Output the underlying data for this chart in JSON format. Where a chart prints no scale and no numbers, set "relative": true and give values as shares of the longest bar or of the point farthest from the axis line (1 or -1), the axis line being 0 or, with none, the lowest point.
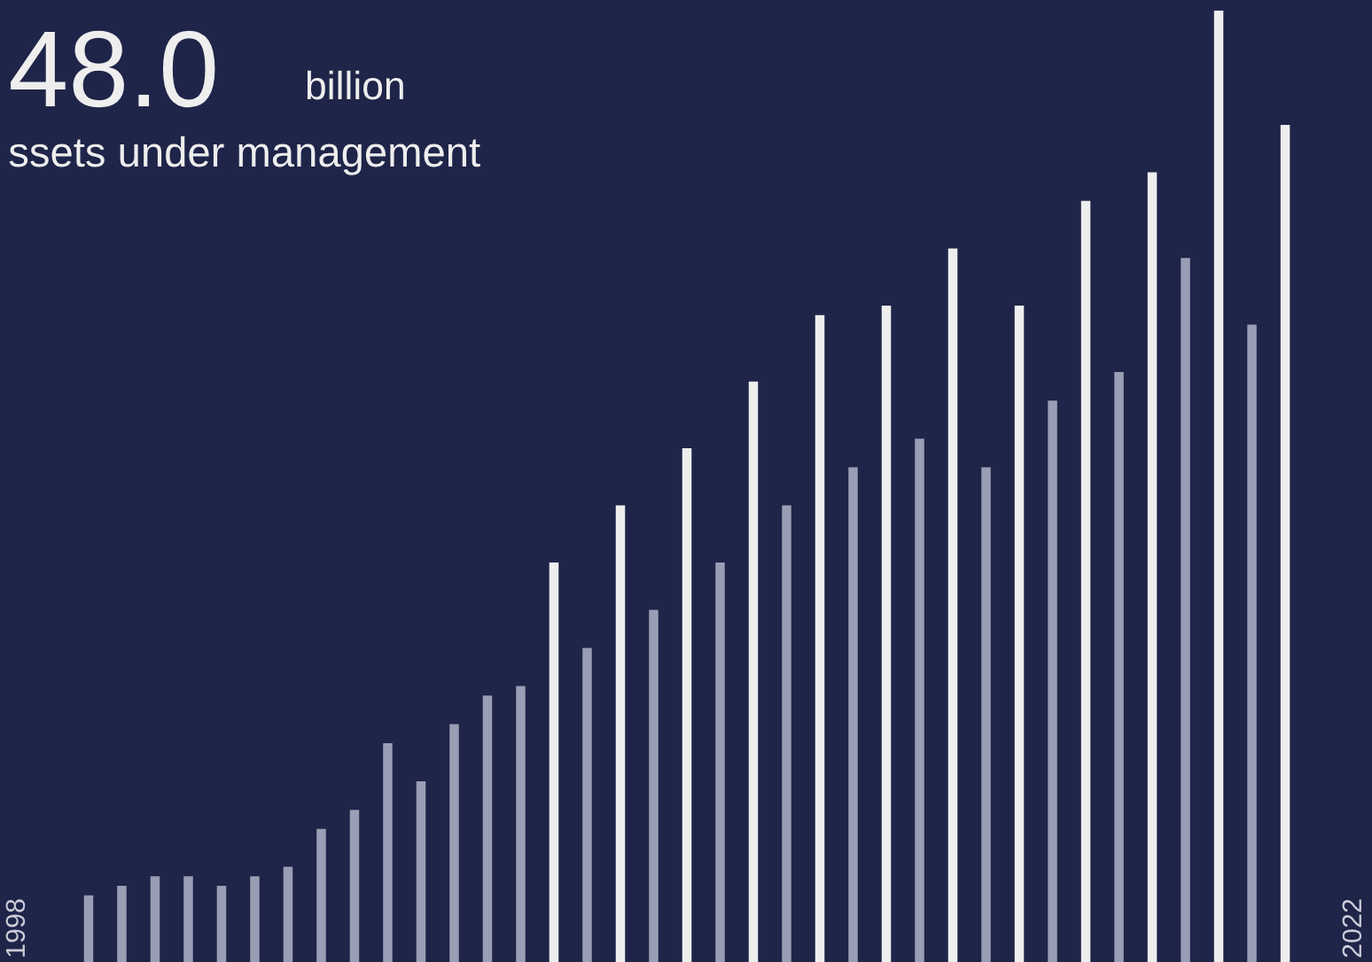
{
  "chart_data": {
    "type": "bar",
    "relative": true,
    "title": "48.0",
    "annotations": [
      "billion",
      "ssets under management",
      "1998",
      "2022"
    ],
    "categories": [
      null,
      null,
      null,
      null,
      null,
      null,
      null,
      null,
      null,
      null,
      null,
      null,
      null,
      null,
      null,
      null,
      null,
      null,
      null,
      null,
      null,
      null,
      null,
      null,
      null,
      null,
      null,
      null,
      null,
      null,
      null,
      null,
      null,
      null,
      null,
      null,
      null
    ],
    "values": [
      0.07,
      0.08,
      0.09,
      0.09,
      0.08,
      0.09,
      0.1,
      0.14,
      0.16,
      0.23,
      0.19,
      0.25,
      0.28,
      0.29,
      0.42,
      0.33,
      0.48,
      0.37,
      0.54,
      0.42,
      0.61,
      0.48,
      0.68,
      0.52,
      0.69,
      0.55,
      0.75,
      0.52,
      0.69,
      0.59,
      0.8,
      0.62,
      0.83,
      0.74,
      1,
      0.67,
      0.88
    ],
    "colors": [
      "#9a9eb4",
      "#9a9eb4",
      "#9a9eb4",
      "#9a9eb4",
      "#9a9eb4",
      "#9a9eb4",
      "#9a9eb4",
      "#9a9eb4",
      "#9a9eb4",
      "#9a9eb4",
      "#9a9eb4",
      "#9a9eb4",
      "#9a9eb4",
      "#9a9eb4",
      "#eeeeee",
      "#9a9eb4",
      "#eeeeee",
      "#9a9eb4",
      "#eeeeee",
      "#9a9eb4",
      "#eeeeee",
      "#9a9eb4",
      "#eeeeee",
      "#9a9eb4",
      "#eeeeee",
      "#9a9eb4",
      "#eeeeee",
      "#9a9eb4",
      "#eeeeee",
      "#9a9eb4",
      "#eeeeee",
      "#9a9eb4",
      "#eeeeee",
      "#9a9eb4",
      "#eeeeee",
      "#9a9eb4",
      "#eeeeee"
    ],
    "legend": false,
    "grid": false
  }
}
